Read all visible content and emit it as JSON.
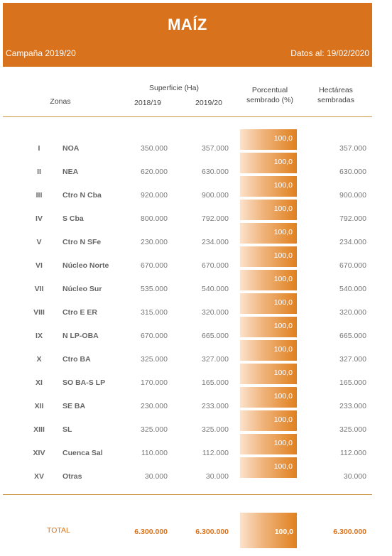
{
  "header": {
    "title": "MAÍZ",
    "campaign": "Campaña 2019/20",
    "datos": "Datos al: 19/02/2020"
  },
  "columns": {
    "zonas": "Zonas",
    "superficie": "Superficie (Ha)",
    "y1": "2018/19",
    "y2": "2019/20",
    "porcentual_1": "Porcentual",
    "porcentual_2": "sembrado (%)",
    "hectareas_1": "Hectáreas",
    "hectareas_2": "sembradas"
  },
  "rows": [
    {
      "num": "I",
      "zona": "NOA",
      "v1": "350.000",
      "v2": "357.000",
      "pct": "100,0",
      "ha": "357.000"
    },
    {
      "num": "II",
      "zona": "NEA",
      "v1": "620.000",
      "v2": "630.000",
      "pct": "100,0",
      "ha": "630.000"
    },
    {
      "num": "III",
      "zona": "Ctro N Cba",
      "v1": "920.000",
      "v2": "900.000",
      "pct": "100,0",
      "ha": "900.000"
    },
    {
      "num": "IV",
      "zona": "S Cba",
      "v1": "800.000",
      "v2": "792.000",
      "pct": "100,0",
      "ha": "792.000"
    },
    {
      "num": "V",
      "zona": "Ctro N SFe",
      "v1": "230.000",
      "v2": "234.000",
      "pct": "100,0",
      "ha": "234.000"
    },
    {
      "num": "VI",
      "zona": "Núcleo Norte",
      "v1": "670.000",
      "v2": "670.000",
      "pct": "100,0",
      "ha": "670.000"
    },
    {
      "num": "VII",
      "zona": "Núcleo Sur",
      "v1": "535.000",
      "v2": "540.000",
      "pct": "100,0",
      "ha": "540.000"
    },
    {
      "num": "VIII",
      "zona": "Ctro E ER",
      "v1": "315.000",
      "v2": "320.000",
      "pct": "100,0",
      "ha": "320.000"
    },
    {
      "num": "IX",
      "zona": "N LP-OBA",
      "v1": "670.000",
      "v2": "665.000",
      "pct": "100,0",
      "ha": "665.000"
    },
    {
      "num": "X",
      "zona": "Ctro BA",
      "v1": "325.000",
      "v2": "327.000",
      "pct": "100,0",
      "ha": "327.000"
    },
    {
      "num": "XI",
      "zona": "SO BA-S LP",
      "v1": "170.000",
      "v2": "165.000",
      "pct": "100,0",
      "ha": "165.000"
    },
    {
      "num": "XII",
      "zona": "SE BA",
      "v1": "230.000",
      "v2": "233.000",
      "pct": "100,0",
      "ha": "233.000"
    },
    {
      "num": "XIII",
      "zona": "SL",
      "v1": "325.000",
      "v2": "325.000",
      "pct": "100,0",
      "ha": "325.000"
    },
    {
      "num": "XIV",
      "zona": "Cuenca Sal",
      "v1": "110.000",
      "v2": "112.000",
      "pct": "100,0",
      "ha": "112.000"
    },
    {
      "num": "XV",
      "zona": "Otras",
      "v1": "30.000",
      "v2": "30.000",
      "pct": "100,0",
      "ha": "30.000"
    }
  ],
  "total": {
    "label": "TOTAL",
    "v1": "6.300.000",
    "v2": "6.300.000",
    "pct": "100,0",
    "ha": "6.300.000"
  },
  "colors": {
    "accent": "#d9721c",
    "rule": "#c9953e"
  }
}
